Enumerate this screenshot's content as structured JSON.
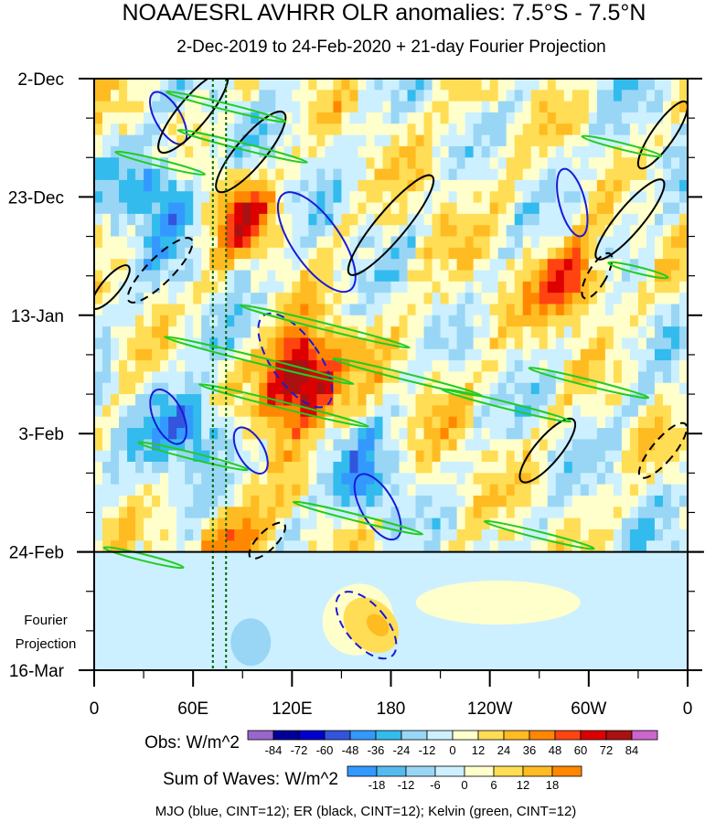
{
  "chart_data": {
    "type": "heatmap",
    "title": "NOAA/ESRL AVHRR OLR anomalies: 7.5°S - 7.5°N",
    "subtitle": "2-Dec-2019 to 24-Feb-2020 + 21-day Fourier Projection",
    "y_tick_labels": [
      "2-Dec",
      "23-Dec",
      "13-Jan",
      "3-Feb",
      "24-Feb",
      "16-Mar"
    ],
    "y_ticks_days": [
      0,
      21,
      42,
      63,
      84,
      105
    ],
    "y_range_days": [
      0,
      105
    ],
    "projection_label_line1": "Fourier",
    "projection_label_line2": "Projection",
    "x_tick_labels": [
      "0",
      "60E",
      "120E",
      "180",
      "120W",
      "60W",
      "0"
    ],
    "x_ticks_lon": [
      0,
      60,
      120,
      180,
      240,
      300,
      360
    ],
    "x_range_lon": [
      0,
      360
    ],
    "obs_legend": {
      "label": "Obs: W/m^2",
      "tick_labels": [
        "-84",
        "-72",
        "-60",
        "-48",
        "-36",
        "-24",
        "-12",
        "0",
        "12",
        "24",
        "36",
        "48",
        "60",
        "72",
        "84"
      ],
      "colors": [
        "#9966cc",
        "#000099",
        "#0000cc",
        "#3355dd",
        "#3399ff",
        "#33bbee",
        "#99d6f5",
        "#ccf0ff",
        "#ffffcc",
        "#ffdd55",
        "#ffbb22",
        "#ff8800",
        "#ff4411",
        "#dd0000",
        "#aa1111",
        "#cc66cc"
      ]
    },
    "waves_legend": {
      "label": "Sum of Waves: W/m^2",
      "tick_labels": [
        "-18",
        "-12",
        "-6",
        "0",
        "6",
        "12",
        "18"
      ],
      "colors": [
        "#3399ff",
        "#55bbee",
        "#99d6f5",
        "#ccf0ff",
        "#ffffcc",
        "#ffdd55",
        "#ffbb22",
        "#ff8800"
      ]
    },
    "footer": "MJO (blue, CINT=12); ER (black, CINT=12); Kelvin (green, CINT=12)",
    "contour_colors": {
      "mjo": "#1a1ad6",
      "er": "#000000",
      "kelvin": "#22cc22"
    },
    "reference_lines_lon": [
      72,
      80
    ],
    "reference_line_color": "#006600",
    "obs_end_day": 84,
    "anomaly_features": [
      {
        "lon": 130,
        "day": 51,
        "value": 72
      },
      {
        "lon": 118,
        "day": 57,
        "value": 60
      },
      {
        "lon": 90,
        "day": 24,
        "value": 48
      },
      {
        "lon": 40,
        "day": 20,
        "value": -48
      },
      {
        "lon": 60,
        "day": 62,
        "value": -48
      },
      {
        "lon": 165,
        "day": 72,
        "value": -36
      },
      {
        "lon": 290,
        "day": 36,
        "value": 60
      },
      {
        "lon": 85,
        "day": 82,
        "value": 48
      }
    ]
  }
}
